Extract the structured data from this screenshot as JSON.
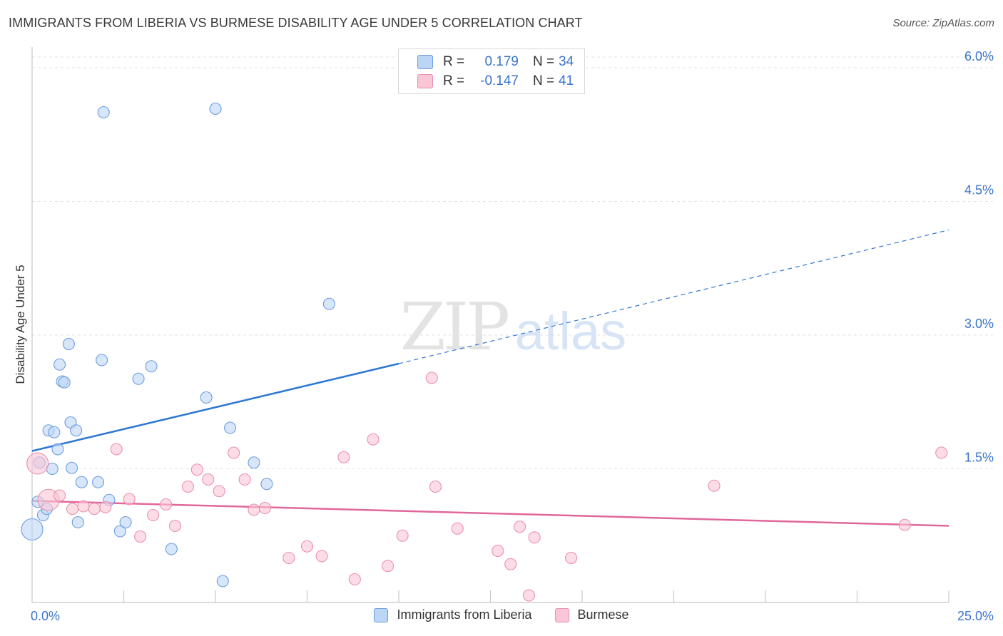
{
  "title": "IMMIGRANTS FROM LIBERIA VS BURMESE DISABILITY AGE UNDER 5 CORRELATION CHART",
  "source": "Source: ZipAtlas.com",
  "watermark": {
    "zip": "ZIP",
    "atlas": "atlas"
  },
  "legend": {
    "r_label": "R =",
    "n_label": "N =",
    "rows": [
      {
        "r": "0.179",
        "n": "34",
        "fill": "#bcd5f5",
        "stroke": "#6d9de0"
      },
      {
        "r": "-0.147",
        "n": "41",
        "fill": "#fac6d6",
        "stroke": "#ea8fae"
      }
    ]
  },
  "chart_data": {
    "type": "scatter",
    "title": "IMMIGRANTS FROM LIBERIA VS BURMESE DISABILITY AGE UNDER 5 CORRELATION CHART",
    "xlabel": "",
    "ylabel": "Disability Age Under 5",
    "xlim": [
      0,
      25
    ],
    "ylim": [
      0,
      6.2
    ],
    "x_tick_labels": [
      "0.0%",
      "25.0%"
    ],
    "y_ticks": [
      1.5,
      3.0,
      4.5,
      6.0
    ],
    "y_tick_labels": [
      "1.5%",
      "3.0%",
      "4.5%",
      "6.0%"
    ],
    "series": [
      {
        "name": "Immigrants from Liberia",
        "fill": "#bcd5f5",
        "stroke": "#6d9de0",
        "line_color": "#2f78d2",
        "trend": {
          "x0": 0,
          "y0": 1.7,
          "x1": 10,
          "y1": 2.68,
          "dash_to_x": 25,
          "dash_to_y": 4.18
        },
        "points": [
          {
            "x": 0.0,
            "y": 0.82,
            "big": true
          },
          {
            "x": 0.15,
            "y": 1.13
          },
          {
            "x": 0.2,
            "y": 1.57
          },
          {
            "x": 0.3,
            "y": 0.98
          },
          {
            "x": 0.4,
            "y": 1.05
          },
          {
            "x": 0.45,
            "y": 1.93
          },
          {
            "x": 0.55,
            "y": 1.5
          },
          {
            "x": 0.6,
            "y": 1.91
          },
          {
            "x": 0.7,
            "y": 1.72
          },
          {
            "x": 0.75,
            "y": 2.67
          },
          {
            "x": 0.82,
            "y": 2.48
          },
          {
            "x": 0.88,
            "y": 2.47
          },
          {
            "x": 1.0,
            "y": 2.9
          },
          {
            "x": 1.05,
            "y": 2.02
          },
          {
            "x": 1.08,
            "y": 1.51
          },
          {
            "x": 1.2,
            "y": 1.93
          },
          {
            "x": 1.25,
            "y": 0.9
          },
          {
            "x": 1.35,
            "y": 1.35
          },
          {
            "x": 1.8,
            "y": 1.35
          },
          {
            "x": 1.9,
            "y": 2.72
          },
          {
            "x": 1.95,
            "y": 5.5
          },
          {
            "x": 2.1,
            "y": 1.15
          },
          {
            "x": 2.4,
            "y": 0.8
          },
          {
            "x": 2.55,
            "y": 0.9
          },
          {
            "x": 2.9,
            "y": 2.51
          },
          {
            "x": 3.25,
            "y": 2.65
          },
          {
            "x": 3.8,
            "y": 0.6
          },
          {
            "x": 4.75,
            "y": 2.3
          },
          {
            "x": 5.0,
            "y": 5.54
          },
          {
            "x": 5.2,
            "y": 0.24
          },
          {
            "x": 5.4,
            "y": 1.96
          },
          {
            "x": 6.05,
            "y": 1.57
          },
          {
            "x": 6.4,
            "y": 1.33
          },
          {
            "x": 8.1,
            "y": 3.35
          }
        ]
      },
      {
        "name": "Burmese",
        "fill": "#fac6d6",
        "stroke": "#ea8fae",
        "line_color": "#e0679a",
        "trend": {
          "x0": 0,
          "y0": 1.14,
          "x1": 25,
          "y1": 0.86
        },
        "points": [
          {
            "x": 0.15,
            "y": 1.56,
            "big": true
          },
          {
            "x": 0.45,
            "y": 1.15,
            "big": true
          },
          {
            "x": 0.75,
            "y": 1.2
          },
          {
            "x": 1.1,
            "y": 1.05
          },
          {
            "x": 1.4,
            "y": 1.08
          },
          {
            "x": 1.7,
            "y": 1.05
          },
          {
            "x": 2.0,
            "y": 1.07
          },
          {
            "x": 2.3,
            "y": 1.72
          },
          {
            "x": 2.65,
            "y": 1.16
          },
          {
            "x": 2.95,
            "y": 0.74
          },
          {
            "x": 3.3,
            "y": 0.98
          },
          {
            "x": 3.65,
            "y": 1.1
          },
          {
            "x": 3.9,
            "y": 0.86
          },
          {
            "x": 4.25,
            "y": 1.3
          },
          {
            "x": 4.5,
            "y": 1.49
          },
          {
            "x": 4.8,
            "y": 1.38
          },
          {
            "x": 5.1,
            "y": 1.25
          },
          {
            "x": 5.5,
            "y": 1.68
          },
          {
            "x": 5.8,
            "y": 1.38
          },
          {
            "x": 6.05,
            "y": 1.04
          },
          {
            "x": 6.35,
            "y": 1.06
          },
          {
            "x": 7.0,
            "y": 0.5
          },
          {
            "x": 7.5,
            "y": 0.63
          },
          {
            "x": 7.9,
            "y": 0.52
          },
          {
            "x": 8.5,
            "y": 1.63
          },
          {
            "x": 8.8,
            "y": 0.26
          },
          {
            "x": 9.3,
            "y": 1.83
          },
          {
            "x": 9.7,
            "y": 0.41
          },
          {
            "x": 10.1,
            "y": 0.75
          },
          {
            "x": 10.9,
            "y": 2.52
          },
          {
            "x": 11.0,
            "y": 1.3
          },
          {
            "x": 11.6,
            "y": 0.83
          },
          {
            "x": 12.7,
            "y": 0.58
          },
          {
            "x": 13.05,
            "y": 0.43
          },
          {
            "x": 13.3,
            "y": 0.85
          },
          {
            "x": 13.55,
            "y": 0.08
          },
          {
            "x": 13.7,
            "y": 0.73
          },
          {
            "x": 14.7,
            "y": 0.5
          },
          {
            "x": 18.6,
            "y": 1.31
          },
          {
            "x": 23.8,
            "y": 0.87
          },
          {
            "x": 24.8,
            "y": 1.68
          }
        ]
      }
    ]
  }
}
